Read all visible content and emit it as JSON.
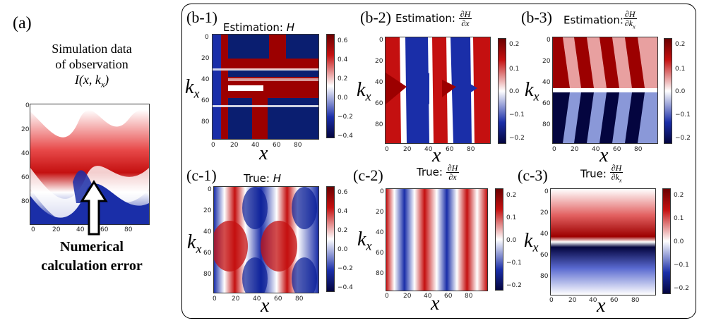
{
  "panel_a": {
    "label": "(a)",
    "caption_line1": "Simulation data",
    "caption_line2": "of observation",
    "caption_formula": "I(x, k",
    "caption_formula_sub": "x",
    "caption_formula_end": ")",
    "x_ticks": [
      "0",
      "20",
      "40",
      "60",
      "80"
    ],
    "y_ticks": [
      "0",
      "20",
      "40",
      "60",
      "80"
    ],
    "error_line1": "Numerical",
    "error_line2": "calculation error"
  },
  "panels": [
    {
      "id": "b1",
      "label": "(b-1)",
      "title": "Estimation: ",
      "title_var": "H",
      "frac": false
    },
    {
      "id": "b2",
      "label": "(b-2)",
      "title": "Estimation: ",
      "frac": true,
      "frac_num": "∂H",
      "frac_den": "∂x"
    },
    {
      "id": "b3",
      "label": "(b-3)",
      "title": "Estimation:",
      "frac": true,
      "frac_num": "∂H",
      "frac_den": "∂k",
      "frac_den_sub": "x"
    },
    {
      "id": "c1",
      "label": "(c-1)",
      "title": "True: ",
      "title_var": "H",
      "frac": false
    },
    {
      "id": "c2",
      "label": "(c-2)",
      "title": "True: ",
      "frac": true,
      "frac_num": "∂H",
      "frac_den": "∂x"
    },
    {
      "id": "c3",
      "label": "(c-3)",
      "title": "True: ",
      "frac": true,
      "frac_num": "∂H",
      "frac_den": "∂k",
      "frac_den_sub": "x"
    }
  ],
  "axes": {
    "x_label": "x",
    "y_label": "k",
    "y_label_sub": "x",
    "x_ticks": [
      "0",
      "20",
      "40",
      "60",
      "80"
    ],
    "y_ticks": [
      "0",
      "20",
      "40",
      "60",
      "80"
    ]
  },
  "colorbars": {
    "H": [
      "0.6",
      "0.4",
      "0.2",
      "0.0",
      "−0.2",
      "−0.4"
    ],
    "dH": [
      "0.2",
      "0.1",
      "0.0",
      "−0.1",
      "−0.2"
    ]
  },
  "colors": {
    "red": "#b40000",
    "white": "#ffffff",
    "blue": "#0a1e96",
    "dark_blue": "#04053f"
  }
}
